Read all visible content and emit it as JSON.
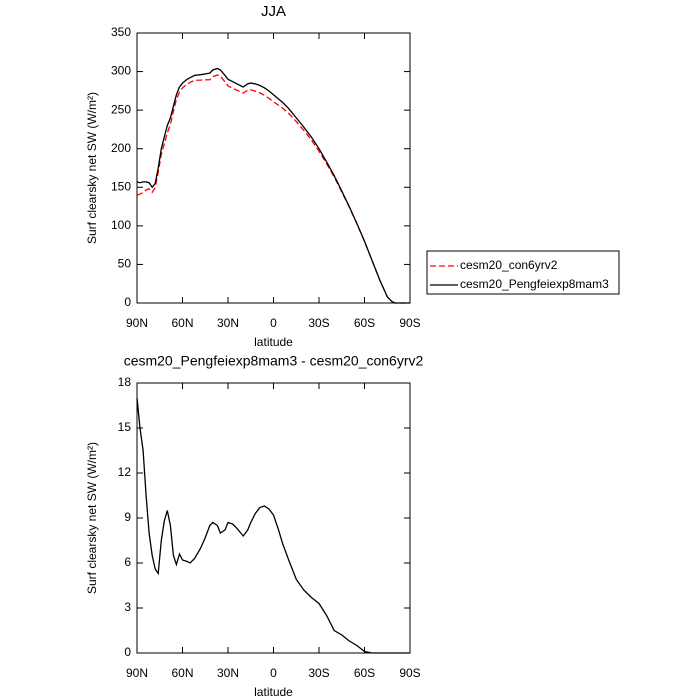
{
  "chart_data": [
    {
      "type": "line",
      "title": "JJA",
      "xlabel": "latitude",
      "ylabel": "Surf clearsky net SW (W/m²)",
      "x": [
        90,
        88,
        86,
        84,
        82,
        80,
        78,
        76,
        74,
        72,
        70,
        68,
        66,
        64,
        62,
        60,
        57,
        55,
        52,
        48,
        45,
        42,
        40,
        37,
        35,
        32,
        30,
        27,
        24,
        20,
        17,
        15,
        12,
        9,
        6,
        3,
        0,
        -3,
        -6,
        -10,
        -15,
        -20,
        -25,
        -30,
        -35,
        -40,
        -45,
        -50,
        -55,
        -60,
        -65,
        -70,
        -75,
        -78,
        -80,
        -85,
        -90
      ],
      "series": [
        {
          "name": "cesm20_con6yrv2",
          "color": "#ff0000",
          "dash": true,
          "values": [
            140,
            141,
            143.5,
            146.5,
            148,
            143.5,
            149.4,
            169.7,
            192.5,
            206.2,
            220.5,
            231.5,
            248.5,
            264.1,
            273.4,
            278.8,
            283.9,
            286,
            288.7,
            289,
            289.3,
            289.5,
            293.3,
            295.5,
            294,
            286.8,
            281.3,
            278.4,
            275.7,
            272.2,
            275.8,
            276.3,
            274.7,
            272.3,
            269.2,
            265.4,
            260.8,
            256.7,
            252.7,
            245.8,
            235.1,
            223.8,
            211.3,
            196.7,
            180.5,
            163.5,
            143.8,
            124.2,
            102.5,
            79.9,
            55,
            30,
            8,
            2,
            0,
            0,
            0
          ]
        },
        {
          "name": "cesm20_Pengfeiexp8mam3",
          "color": "#000000",
          "dash": false,
          "values": [
            157,
            156,
            157,
            157,
            156,
            150,
            155,
            175,
            200,
            215,
            230,
            240,
            255,
            270,
            280,
            285,
            290,
            292,
            295,
            296,
            297,
            298,
            302,
            304,
            302,
            295,
            290,
            287,
            284,
            280,
            284,
            285,
            284,
            282,
            279,
            275,
            270,
            265,
            260,
            252,
            240,
            228,
            215,
            200,
            183,
            165,
            145,
            125,
            103,
            80,
            55,
            30,
            8,
            2,
            0,
            0,
            0
          ]
        }
      ],
      "xlim": [
        90,
        -90
      ],
      "xticks": [
        {
          "value": 90,
          "label": "90N"
        },
        {
          "value": 60,
          "label": "60N"
        },
        {
          "value": 30,
          "label": "30N"
        },
        0,
        {
          "value": -30,
          "label": "30S"
        },
        {
          "value": -60,
          "label": "60S"
        },
        {
          "value": -90,
          "label": "90S"
        }
      ],
      "ylim": [
        0,
        350
      ],
      "yticks": [
        0,
        50,
        100,
        150,
        200,
        250,
        300,
        350
      ]
    },
    {
      "type": "line",
      "title": "cesm20_Pengfeiexp8mam3 - cesm20_con6yrv2",
      "xlabel": "latitude",
      "ylabel": "Surf clearsky net SW (W/m²)",
      "x": [
        90,
        88,
        86,
        84,
        82,
        80,
        78,
        76,
        74,
        72,
        70,
        68,
        66,
        64,
        62,
        60,
        57,
        55,
        52,
        48,
        45,
        42,
        40,
        37,
        35,
        32,
        30,
        27,
        24,
        20,
        17,
        15,
        12,
        9,
        6,
        3,
        0,
        -3,
        -6,
        -10,
        -15,
        -20,
        -25,
        -30,
        -35,
        -40,
        -45,
        -50,
        -55,
        -60,
        -65,
        -70,
        -75,
        -78,
        -80,
        -85,
        -90
      ],
      "color": "#000000",
      "values": [
        17,
        15,
        13.5,
        10.5,
        8,
        6.5,
        5.6,
        5.3,
        7.5,
        8.8,
        9.5,
        8.5,
        6.5,
        5.9,
        6.6,
        6.2,
        6.1,
        6,
        6.3,
        7,
        7.7,
        8.5,
        8.7,
        8.5,
        8,
        8.2,
        8.7,
        8.6,
        8.3,
        7.8,
        8.2,
        8.7,
        9.3,
        9.7,
        9.8,
        9.6,
        9.2,
        8.3,
        7.3,
        6.2,
        4.9,
        4.2,
        3.7,
        3.3,
        2.5,
        1.5,
        1.2,
        0.8,
        0.5,
        0.1,
        0,
        0,
        0,
        0,
        0,
        0,
        0
      ],
      "xlim": [
        90,
        -90
      ],
      "xticks": [
        {
          "value": 90,
          "label": "90N"
        },
        {
          "value": 60,
          "label": "60N"
        },
        {
          "value": 30,
          "label": "30N"
        },
        0,
        {
          "value": -30,
          "label": "30S"
        },
        {
          "value": -60,
          "label": "60S"
        },
        {
          "value": -90,
          "label": "90S"
        }
      ],
      "ylim": [
        0,
        18
      ],
      "yticks": [
        0,
        3,
        6,
        9,
        12,
        15,
        18
      ]
    }
  ]
}
